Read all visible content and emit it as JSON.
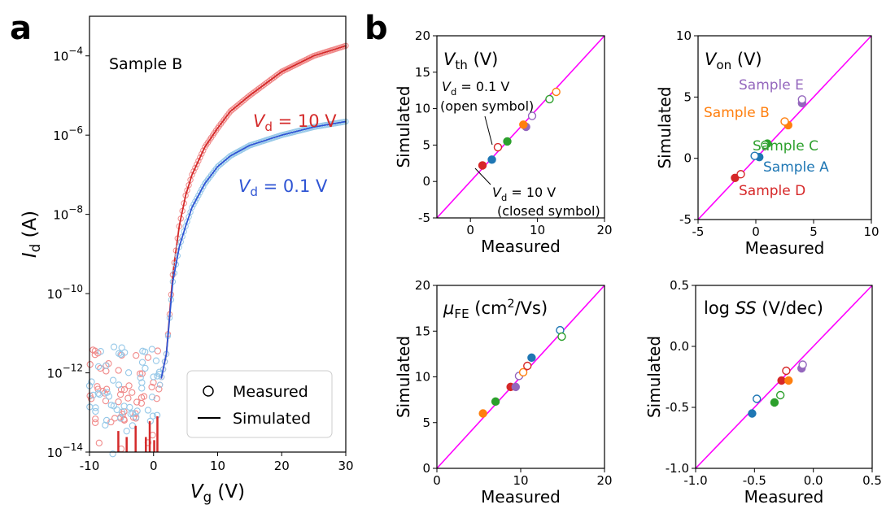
{
  "figure": {
    "panel_a_label": "a",
    "panel_b_label": "b"
  },
  "chart_data": [
    {
      "id": "a",
      "type": "scatter",
      "title": "",
      "annotation": "Sample B",
      "xlabel": "V_g (V)",
      "ylabel": "I_d (A)",
      "xlim": [
        -10,
        30
      ],
      "ylim": [
        1e-14,
        0.001
      ],
      "yscale": "log",
      "xticks": [
        -10,
        0,
        10,
        20,
        30
      ],
      "yticks": [
        1e-14,
        1e-12,
        1e-10,
        1e-08,
        1e-06,
        0.0001
      ],
      "legend": {
        "placement": "bottom-right",
        "entries": [
          "Measured",
          "Simulated"
        ]
      },
      "series": [
        {
          "label": "V_d = 10 V",
          "label_parts": [
            "V",
            "d",
            " = 10 V"
          ],
          "color": "#d42a2a",
          "measured_color": "#f08a8a",
          "x": [
            0,
            1,
            2,
            3,
            4,
            5,
            6,
            8,
            10,
            12,
            15,
            20,
            25,
            30
          ],
          "y": [
            1e-13,
            5e-13,
            3e-12,
            3e-10,
            5e-09,
            3e-08,
            1e-07,
            5e-07,
            1.5e-06,
            4e-06,
            1e-05,
            4e-05,
            0.0001,
            0.00018
          ]
        },
        {
          "label": "V_d = 0.1 V",
          "label_parts": [
            "V",
            "d",
            " = 0.1 V"
          ],
          "color": "#2f55d4",
          "measured_color": "#96c8e8",
          "x": [
            0,
            1,
            2,
            3,
            4,
            5,
            6,
            8,
            10,
            12,
            15,
            20,
            25,
            30
          ],
          "y": [
            1e-13,
            5e-13,
            3e-12,
            2e-10,
            1.5e-09,
            5e-09,
            1.5e-08,
            6e-08,
            1.6e-07,
            3e-07,
            5.5e-07,
            1e-06,
            1.6e-06,
            2.2e-06
          ]
        }
      ]
    },
    {
      "id": "vth",
      "type": "scatter",
      "title": "V_th (V)",
      "title_parts": [
        "V",
        "th",
        " (V)"
      ],
      "xlabel": "Measured",
      "ylabel": "Simulated",
      "xlim": [
        -5,
        20
      ],
      "ylim": [
        -5,
        20
      ],
      "xticks": [
        0,
        10,
        20
      ],
      "yticks": [
        -5,
        0,
        5,
        10,
        15,
        20
      ],
      "annotations": [
        {
          "parts": [
            "V",
            "d",
            " = 0.1 V"
          ],
          "line2": "(open symbol)"
        },
        {
          "parts": [
            "V",
            "d",
            " = 10 V"
          ],
          "line2": "(closed symbol)"
        }
      ],
      "points": [
        {
          "x": 1.8,
          "y": 2.2,
          "color": "#d62728",
          "filled": true
        },
        {
          "x": 3.2,
          "y": 3.0,
          "color": "#1f77b4",
          "filled": true
        },
        {
          "x": 5.5,
          "y": 5.5,
          "color": "#2ca02c",
          "filled": true
        },
        {
          "x": 8.3,
          "y": 7.5,
          "color": "#9467bd",
          "filled": true
        },
        {
          "x": 7.9,
          "y": 7.8,
          "color": "#ff7f0e",
          "filled": true
        },
        {
          "x": 4.1,
          "y": 4.7,
          "color": "#d62728",
          "filled": false
        },
        {
          "x": 9.2,
          "y": 9.0,
          "color": "#9467bd",
          "filled": false
        },
        {
          "x": 11.8,
          "y": 11.3,
          "color": "#2ca02c",
          "filled": false
        },
        {
          "x": 12.8,
          "y": 12.3,
          "color": "#ff7f0e",
          "filled": false
        }
      ]
    },
    {
      "id": "von",
      "type": "scatter",
      "title": "V_on (V)",
      "title_parts": [
        "V",
        "on",
        " (V)"
      ],
      "xlabel": "Measured",
      "ylabel": "Simulated",
      "xlim": [
        -5,
        10
      ],
      "ylim": [
        -5,
        10
      ],
      "xticks": [
        -5,
        0,
        5,
        10
      ],
      "yticks": [
        -5,
        0,
        5,
        10
      ],
      "legend_labels": [
        {
          "text": "Sample E",
          "color": "#9467bd"
        },
        {
          "text": "Sample B",
          "color": "#ff7f0e"
        },
        {
          "text": "Sample C",
          "color": "#2ca02c"
        },
        {
          "text": "Sample A",
          "color": "#1f77b4"
        },
        {
          "text": "Sample D",
          "color": "#d62728"
        }
      ],
      "points": [
        {
          "x": -1.8,
          "y": -1.6,
          "color": "#d62728",
          "filled": true
        },
        {
          "x": 0.3,
          "y": 0.1,
          "color": "#1f77b4",
          "filled": true
        },
        {
          "x": 1.0,
          "y": 1.2,
          "color": "#2ca02c",
          "filled": true
        },
        {
          "x": 2.8,
          "y": 2.7,
          "color": "#ff7f0e",
          "filled": true
        },
        {
          "x": 4.0,
          "y": 4.5,
          "color": "#9467bd",
          "filled": true
        },
        {
          "x": -1.3,
          "y": -1.3,
          "color": "#d62728",
          "filled": false
        },
        {
          "x": -0.1,
          "y": 0.2,
          "color": "#1f77b4",
          "filled": false
        },
        {
          "x": 0.8,
          "y": 1.1,
          "color": "#2ca02c",
          "filled": false
        },
        {
          "x": 2.5,
          "y": 3.0,
          "color": "#ff7f0e",
          "filled": false
        },
        {
          "x": 4.0,
          "y": 4.8,
          "color": "#9467bd",
          "filled": false
        }
      ]
    },
    {
      "id": "mufe",
      "type": "scatter",
      "title": "μ_FE (cm²/Vs)",
      "title_parts": [
        "μ",
        "FE",
        " (cm",
        "2",
        "/Vs)"
      ],
      "xlabel": "Measured",
      "ylabel": "Simulated",
      "xlim": [
        0,
        20
      ],
      "ylim": [
        0,
        20
      ],
      "xticks": [
        0,
        10,
        20
      ],
      "yticks": [
        0,
        5,
        10,
        15,
        20
      ],
      "points": [
        {
          "x": 5.5,
          "y": 6.0,
          "color": "#ff7f0e",
          "filled": true
        },
        {
          "x": 7.0,
          "y": 7.3,
          "color": "#2ca02c",
          "filled": true
        },
        {
          "x": 8.8,
          "y": 8.9,
          "color": "#d62728",
          "filled": true
        },
        {
          "x": 9.4,
          "y": 8.9,
          "color": "#9467bd",
          "filled": true
        },
        {
          "x": 11.3,
          "y": 12.1,
          "color": "#1f77b4",
          "filled": true
        },
        {
          "x": 9.8,
          "y": 10.1,
          "color": "#9467bd",
          "filled": false
        },
        {
          "x": 10.3,
          "y": 10.5,
          "color": "#ff7f0e",
          "filled": false
        },
        {
          "x": 10.8,
          "y": 11.2,
          "color": "#d62728",
          "filled": false
        },
        {
          "x": 14.7,
          "y": 15.1,
          "color": "#1f77b4",
          "filled": false
        },
        {
          "x": 14.9,
          "y": 14.4,
          "color": "#2ca02c",
          "filled": false
        }
      ]
    },
    {
      "id": "logss",
      "type": "scatter",
      "title": "log SS (V/dec)",
      "title_parts": [
        "log ",
        "SS",
        " (V/dec)"
      ],
      "xlabel": "Measured",
      "ylabel": "Simulated",
      "xlim": [
        -1.0,
        0.5
      ],
      "ylim": [
        -1.0,
        0.5
      ],
      "xticks": [
        -1.0,
        -0.5,
        0.0,
        0.5
      ],
      "yticks": [
        -1.0,
        -0.5,
        0.0,
        0.5
      ],
      "points": [
        {
          "x": -0.52,
          "y": -0.55,
          "color": "#1f77b4",
          "filled": true
        },
        {
          "x": -0.33,
          "y": -0.46,
          "color": "#2ca02c",
          "filled": true
        },
        {
          "x": -0.27,
          "y": -0.28,
          "color": "#d62728",
          "filled": true
        },
        {
          "x": -0.21,
          "y": -0.28,
          "color": "#ff7f0e",
          "filled": true
        },
        {
          "x": -0.1,
          "y": -0.18,
          "color": "#9467bd",
          "filled": true
        },
        {
          "x": -0.48,
          "y": -0.43,
          "color": "#1f77b4",
          "filled": false
        },
        {
          "x": -0.28,
          "y": -0.4,
          "color": "#2ca02c",
          "filled": false
        },
        {
          "x": -0.23,
          "y": -0.2,
          "color": "#d62728",
          "filled": false
        },
        {
          "x": -0.09,
          "y": -0.15,
          "color": "#9467bd",
          "filled": false
        }
      ]
    }
  ]
}
